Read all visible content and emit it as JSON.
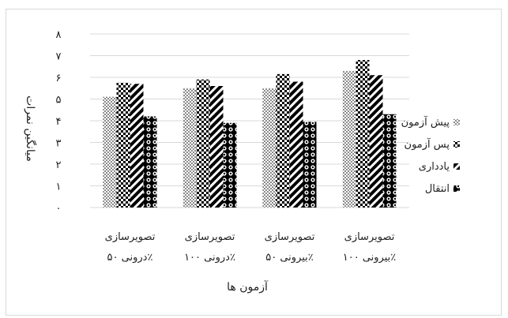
{
  "chart_data": {
    "type": "bar",
    "title": "",
    "xlabel": "آزمون ها",
    "ylabel": "میانگین نمرات",
    "ylim": [
      0,
      8
    ],
    "yticks": [
      "۰",
      "۱",
      "۲",
      "۳",
      "۴",
      "۵",
      "۶",
      "۷",
      "۸"
    ],
    "grid": true,
    "legend_position": "right",
    "categories": [
      [
        "تصویرسازی",
        "درونی ۵۰٪"
      ],
      [
        "تصویرسازی",
        "درونی ۱۰۰٪"
      ],
      [
        "تصویرسازی",
        "بیرونی ۵۰٪"
      ],
      [
        "تصویرسازی",
        "بیرونی ۱۰۰٪"
      ]
    ],
    "series": [
      {
        "name": "پیش آزمون",
        "pattern": "dots",
        "values": [
          5.1,
          5.5,
          5.5,
          6.3
        ]
      },
      {
        "name": "پس آزمون",
        "pattern": "checker",
        "values": [
          5.75,
          5.9,
          6.15,
          6.8
        ]
      },
      {
        "name": "یادداری",
        "pattern": "stripes",
        "values": [
          5.7,
          5.6,
          5.8,
          6.1
        ]
      },
      {
        "name": "انتقال",
        "pattern": "circles",
        "values": [
          4.2,
          3.9,
          3.95,
          4.3
        ]
      }
    ]
  }
}
